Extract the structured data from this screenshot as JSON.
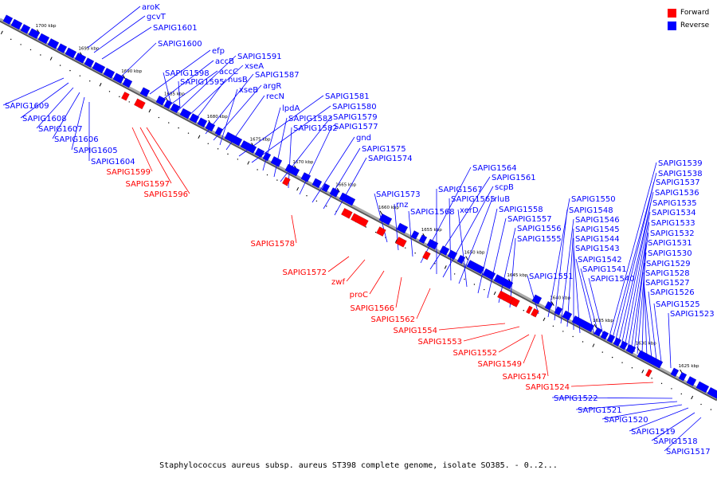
{
  "legend": [
    {
      "label": "Forward",
      "color": "#ff0000"
    },
    {
      "label": "Reverse",
      "color": "#0000ff"
    }
  ],
  "caption": "Staphylococcus aureus subsp. aureus ST398 complete genome, isolate SO385. - 0..2...",
  "colors": {
    "forward": "#ff0000",
    "reverse": "#0000ff",
    "backbone": "#888888"
  },
  "scale_labels": [
    "1700 kbp",
    "1695 kbp",
    "1690 kbp",
    "1685 kbp",
    "1680 kbp",
    "1675 kbp",
    "1670 kbp",
    "1665 kbp",
    "1660 kbp",
    "1655 kbp",
    "1650 kbp",
    "1645 kbp",
    "1640 kbp",
    "1635 kbp",
    "1630 kbp",
    "1625 kbp"
  ],
  "reverse_genes": [
    "aroK",
    "gcvT",
    "SAPIG1601",
    "SAPIG1600",
    "efp",
    "accB",
    "accC",
    "SAPIG1591",
    "xseA",
    "nusB",
    "SAPIG1598",
    "SAPIG1595",
    "SAPIG1587",
    "argR",
    "xseB",
    "recN",
    "SAPIG1581",
    "SAPIG1580",
    "lpdA",
    "SAPIG1583",
    "SAPIG1579",
    "SAPIG1582",
    "SAPIG1577",
    "gnd",
    "SAPIG1575",
    "SAPIG1574",
    "SAPIG1573",
    "rnz",
    "SAPIG1568",
    "SAPIG1564",
    "SAPIG1561",
    "SAPIG1567",
    "scpB",
    "SAPIG1565",
    "rluB",
    "xerD",
    "SAPIG1558",
    "SAPIG1557",
    "SAPIG1556",
    "SAPIG1555",
    "SAPIG1551",
    "SAPIG1550",
    "SAPIG1548",
    "SAPIG1546",
    "SAPIG1545",
    "SAPIG1544",
    "SAPIG1543",
    "SAPIG1542",
    "SAPIG1541",
    "SAPIG1540",
    "SAPIG1539",
    "SAPIG1538",
    "SAPIG1537",
    "SAPIG1536",
    "SAPIG1535",
    "SAPIG1534",
    "SAPIG1533",
    "SAPIG1532",
    "SAPIG1531",
    "SAPIG1530",
    "SAPIG1529",
    "SAPIG1528",
    "SAPIG1527",
    "SAPIG1526",
    "SAPIG1525",
    "SAPIG1523",
    "SAPIG1609",
    "SAPIG1608",
    "SAPIG1607",
    "SAPIG1606",
    "SAPIG1605",
    "SAPIG1604",
    "SAPIG1522",
    "SAPIG1521",
    "SAPIG1520",
    "SAPIG1519",
    "SAPIG1518",
    "SAPIG1517"
  ],
  "forward_genes": [
    "SAPIG1599",
    "SAPIG1597",
    "SAPIG1596",
    "SAPIG1578",
    "SAPIG1572",
    "zwf",
    "proC",
    "SAPIG1566",
    "SAPIG1562",
    "SAPIG1554",
    "SAPIG1553",
    "SAPIG1552",
    "SAPIG1549",
    "SAPIG1547",
    "SAPIG1524"
  ]
}
